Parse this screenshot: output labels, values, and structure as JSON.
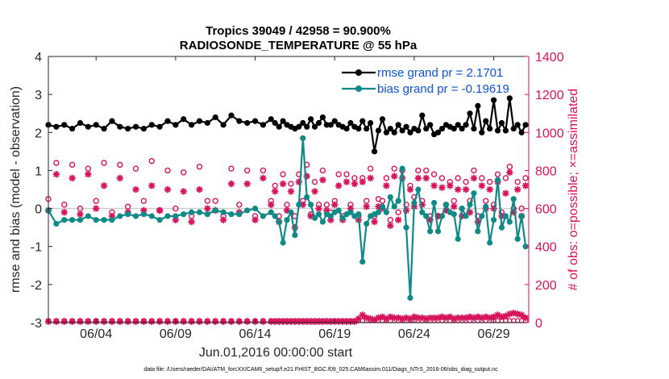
{
  "chart_data": {
    "type": "line",
    "title": "Tropics 39049 / 42958 = 90.900%",
    "subtitle": "RADIOSONDE_TEMPERATURE @ 55 hPa",
    "xlabel": "Jun.01,2016 00:00:00 start",
    "ylabel": "rmse and bias (model - observation)",
    "y2label": "# of obs: o=possible; ×=assimilated",
    "footnote": "data file: /Users/raeder/DAI/ATM_forcXX/CAM6_setup/f.e21.FHIST_BGC.f09_025.CAM6assim.011/Diags_NTrS_2016-06/obs_diag_output.nc",
    "x_tick_labels": [
      "06/04",
      "06/09",
      "06/14",
      "06/19",
      "06/24",
      "06/29"
    ],
    "x_tick_days": [
      4,
      9,
      14,
      19,
      24,
      29
    ],
    "xlim": [
      1,
      31.2
    ],
    "ylim": [
      -3,
      4
    ],
    "y_ticks": [
      "-3",
      "-2",
      "-1",
      "0",
      "1",
      "2",
      "3",
      "4"
    ],
    "y2lim": [
      0,
      1400
    ],
    "y2_ticks": [
      "0",
      "200",
      "400",
      "600",
      "800",
      "1000",
      "1200",
      "1400"
    ],
    "colors": {
      "rmse": "#000000",
      "bias": "#0f8a87",
      "obs": "#d6135b",
      "legend_text": "#0b53d8",
      "zero_line": "#cccccc"
    },
    "series": [
      {
        "name": "rmse grand pr = 2.1701",
        "x": [
          1.0,
          1.5,
          2.0,
          2.5,
          3.0,
          3.5,
          4.0,
          4.5,
          5.0,
          5.5,
          6.0,
          6.5,
          7.0,
          7.5,
          8.0,
          8.5,
          9.0,
          9.5,
          10.0,
          10.5,
          11.0,
          11.5,
          12.0,
          12.5,
          13.0,
          13.5,
          14.0,
          14.5,
          15.0,
          15.25,
          15.5,
          15.75,
          16.0,
          16.25,
          16.5,
          16.75,
          17.0,
          17.25,
          17.5,
          17.75,
          18.0,
          18.25,
          18.5,
          18.75,
          19.0,
          19.25,
          19.5,
          19.75,
          20.0,
          20.25,
          20.5,
          20.75,
          21.0,
          21.25,
          21.5,
          21.75,
          22.0,
          22.25,
          22.5,
          22.75,
          23.0,
          23.25,
          23.5,
          23.75,
          24.0,
          24.25,
          24.5,
          24.75,
          25.0,
          25.25,
          25.5,
          25.75,
          26.0,
          26.25,
          26.5,
          26.75,
          27.0,
          27.25,
          27.5,
          27.75,
          28.0,
          28.25,
          28.5,
          28.75,
          29.0,
          29.25,
          29.5,
          29.75,
          30.0,
          30.25,
          30.5,
          30.75,
          31.0
        ],
        "values": [
          2.2,
          2.15,
          2.2,
          2.1,
          2.25,
          2.15,
          2.2,
          2.1,
          2.3,
          2.15,
          2.1,
          2.15,
          2.1,
          2.2,
          2.15,
          2.3,
          2.2,
          2.35,
          2.2,
          2.3,
          2.25,
          2.4,
          2.2,
          2.45,
          2.3,
          2.25,
          2.3,
          2.2,
          2.35,
          2.25,
          2.15,
          2.3,
          2.2,
          2.15,
          2.1,
          2.15,
          2.25,
          2.15,
          2.35,
          2.15,
          2.25,
          2.4,
          2.2,
          2.2,
          2.3,
          2.2,
          2.15,
          2.1,
          2.25,
          2.15,
          2.1,
          2.3,
          2.1,
          2.25,
          1.5,
          2.05,
          2.35,
          2.0,
          2.1,
          2.0,
          2.2,
          2.05,
          2.15,
          2.0,
          2.1,
          2.05,
          2.45,
          2.1,
          2.2,
          1.95,
          2.0,
          2.1,
          2.2,
          2.15,
          2.1,
          2.2,
          2.1,
          2.2,
          2.5,
          2.1,
          2.7,
          2.0,
          2.3,
          2.1,
          2.85,
          2.05,
          2.25,
          2.05,
          2.9,
          2.1,
          2.2,
          2.0,
          2.2
        ]
      },
      {
        "name": "bias grand pr = -0.19619",
        "x": [
          1.0,
          1.5,
          2.0,
          2.5,
          3.0,
          3.5,
          4.0,
          4.5,
          5.0,
          5.5,
          6.0,
          6.5,
          7.0,
          7.5,
          8.0,
          8.5,
          9.0,
          9.5,
          10.0,
          10.5,
          11.0,
          11.5,
          12.0,
          12.5,
          13.0,
          13.5,
          14.0,
          14.5,
          15.0,
          15.25,
          15.5,
          15.75,
          16.0,
          16.25,
          16.5,
          16.75,
          17.0,
          17.25,
          17.5,
          17.75,
          18.0,
          18.25,
          18.5,
          18.75,
          19.0,
          19.25,
          19.5,
          19.75,
          20.0,
          20.25,
          20.5,
          20.75,
          21.0,
          21.25,
          21.5,
          21.75,
          22.0,
          22.25,
          22.5,
          22.75,
          23.0,
          23.25,
          23.5,
          23.75,
          24.0,
          24.25,
          24.5,
          24.75,
          25.0,
          25.25,
          25.5,
          25.75,
          26.0,
          26.25,
          26.5,
          26.75,
          27.0,
          27.25,
          27.5,
          27.75,
          28.0,
          28.25,
          28.5,
          28.75,
          29.0,
          29.25,
          29.5,
          29.75,
          30.0,
          30.25,
          30.5,
          30.75,
          31.0
        ],
        "values": [
          -0.05,
          -0.4,
          -0.3,
          -0.3,
          -0.3,
          -0.2,
          -0.3,
          -0.3,
          -0.3,
          -0.2,
          -0.15,
          -0.2,
          -0.15,
          -0.2,
          -0.3,
          -0.2,
          -0.2,
          -0.15,
          -0.1,
          -0.1,
          -0.15,
          -0.05,
          -0.1,
          -0.15,
          -0.15,
          -0.05,
          0.0,
          -0.2,
          -0.1,
          -0.2,
          -0.35,
          -0.9,
          -0.3,
          -0.1,
          -0.7,
          0.1,
          1.85,
          0.3,
          0.1,
          -0.25,
          -0.15,
          -0.35,
          -0.15,
          -0.2,
          -0.1,
          -0.05,
          -0.25,
          -0.15,
          -0.1,
          -0.2,
          -0.15,
          -1.4,
          -0.4,
          -0.2,
          -0.15,
          -0.1,
          0.05,
          -0.1,
          0.3,
          0.05,
          0.2,
          1.05,
          -0.5,
          -2.35,
          0.15,
          0.5,
          -0.1,
          -0.2,
          -0.6,
          0.15,
          -0.6,
          -0.2,
          0.1,
          -0.1,
          -0.15,
          -0.8,
          0.0,
          -0.2,
          0.1,
          0.4,
          -0.6,
          -0.2,
          0.05,
          -0.9,
          -0.3,
          0.75,
          -0.5,
          -0.2,
          -0.35,
          0.25,
          -0.8,
          -0.2,
          -1.0
        ]
      }
    ],
    "obs_possible": {
      "x": [
        1.0,
        1.5,
        2.0,
        2.5,
        3.0,
        3.5,
        4.0,
        4.5,
        5.0,
        5.5,
        6.0,
        6.5,
        7.0,
        7.5,
        8.0,
        8.5,
        9.0,
        9.5,
        10.0,
        10.5,
        11.0,
        11.5,
        12.0,
        12.5,
        13.0,
        13.5,
        14.0,
        14.5,
        15.0,
        15.25,
        15.5,
        15.75,
        16.0,
        16.25,
        16.5,
        16.75,
        17.0,
        17.25,
        17.5,
        17.75,
        18.0,
        18.25,
        18.5,
        18.75,
        19.0,
        19.25,
        19.5,
        19.75,
        20.0,
        20.25,
        20.5,
        20.75,
        21.0,
        21.25,
        21.5,
        21.75,
        22.0,
        22.25,
        22.5,
        22.75,
        23.0,
        23.25,
        23.5,
        23.75,
        24.0,
        24.25,
        24.5,
        24.75,
        25.0,
        25.25,
        25.5,
        25.75,
        26.0,
        26.25,
        26.5,
        26.75,
        27.0,
        27.25,
        27.5,
        27.75,
        28.0,
        28.25,
        28.5,
        28.75,
        29.0,
        29.25,
        29.5,
        29.75,
        30.0,
        30.25,
        30.5,
        30.75,
        31.0
      ],
      "values": [
        650,
        840,
        620,
        830,
        600,
        810,
        640,
        840,
        580,
        830,
        610,
        810,
        640,
        850,
        590,
        800,
        600,
        790,
        560,
        820,
        640,
        640,
        560,
        810,
        620,
        800,
        560,
        800,
        640,
        720,
        560,
        780,
        620,
        730,
        560,
        780,
        640,
        830,
        570,
        740,
        620,
        800,
        620,
        580,
        640,
        780,
        560,
        780,
        620,
        760,
        560,
        760,
        640,
        810,
        560,
        650,
        640,
        760,
        540,
        810,
        580,
        800,
        620,
        720,
        660,
        800,
        640,
        800,
        560,
        780,
        560,
        760,
        620,
        740,
        640,
        760,
        600,
        740,
        640,
        800,
        560,
        760,
        640,
        740,
        620,
        780,
        580,
        760,
        820,
        600,
        740,
        600,
        760
      ]
    },
    "obs_assimilated": {
      "x": [
        1.0,
        1.5,
        2.0,
        2.5,
        3.0,
        3.5,
        4.0,
        4.5,
        5.0,
        5.5,
        6.0,
        6.5,
        7.0,
        7.5,
        8.0,
        8.5,
        9.0,
        9.5,
        10.0,
        10.5,
        11.0,
        11.5,
        12.0,
        12.5,
        13.0,
        13.5,
        14.0,
        14.5,
        15.0,
        15.25,
        15.5,
        15.75,
        16.0,
        16.25,
        16.5,
        16.75,
        17.0,
        17.25,
        17.5,
        17.75,
        18.0,
        18.25,
        18.5,
        18.75,
        19.0,
        19.25,
        19.5,
        19.75,
        20.0,
        20.25,
        20.5,
        20.75,
        21.0,
        21.25,
        21.5,
        21.75,
        22.0,
        22.25,
        22.5,
        22.75,
        23.0,
        23.25,
        23.5,
        23.75,
        24.0,
        24.25,
        24.5,
        24.75,
        25.0,
        25.25,
        25.5,
        25.75,
        26.0,
        26.25,
        26.5,
        26.75,
        27.0,
        27.25,
        27.5,
        27.75,
        28.0,
        28.25,
        28.5,
        28.75,
        29.0,
        29.25,
        29.5,
        29.75,
        30.0,
        30.25,
        30.5,
        30.75,
        31.0
      ],
      "values": [
        590,
        780,
        580,
        760,
        570,
        780,
        600,
        720,
        560,
        760,
        580,
        700,
        590,
        720,
        590,
        700,
        540,
        690,
        530,
        700,
        600,
        590,
        540,
        730,
        580,
        730,
        540,
        760,
        620,
        690,
        530,
        730,
        590,
        690,
        500,
        740,
        620,
        770,
        560,
        690,
        600,
        750,
        590,
        540,
        620,
        720,
        540,
        740,
        600,
        730,
        540,
        740,
        610,
        760,
        530,
        610,
        600,
        720,
        510,
        770,
        540,
        760,
        590,
        700,
        610,
        760,
        620,
        760,
        540,
        720,
        560,
        710,
        590,
        720,
        610,
        700,
        560,
        700,
        580,
        760,
        530,
        720,
        600,
        700,
        600,
        740,
        560,
        680,
        790,
        580,
        700,
        560,
        720
      ]
    },
    "obs_bottom_possible": [
      10,
      10,
      10,
      10,
      10,
      10,
      10,
      10,
      10,
      10,
      10,
      10,
      10,
      10,
      10,
      10,
      10,
      10,
      10,
      10,
      10,
      10,
      10,
      10,
      10,
      10,
      10,
      10,
      10,
      10,
      10,
      10,
      10,
      10,
      10,
      10,
      10,
      10,
      10,
      10,
      10,
      10,
      10,
      10,
      10,
      10,
      10,
      10,
      10,
      10,
      10,
      10,
      10,
      10,
      10,
      10,
      10,
      10,
      10,
      10,
      10,
      10,
      10,
      10,
      10,
      10,
      10,
      10,
      10,
      10,
      10,
      10,
      10,
      10,
      10,
      10,
      10,
      10,
      10,
      10,
      10,
      10,
      10,
      10,
      10,
      10,
      10,
      10,
      10,
      10,
      10,
      10,
      10
    ],
    "obs_bottom_assimilated": [
      5,
      5,
      5,
      5,
      5,
      5,
      5,
      5,
      5,
      5,
      5,
      5,
      5,
      5,
      5,
      5,
      5,
      5,
      5,
      5,
      5,
      5,
      5,
      5,
      5,
      5,
      5,
      5,
      5,
      5,
      5,
      5,
      5,
      5,
      5,
      5,
      5,
      5,
      5,
      5,
      5,
      5,
      5,
      5,
      5,
      5,
      5,
      5,
      5,
      5,
      20,
      40,
      25,
      20,
      15,
      25,
      30,
      20,
      30,
      25,
      25,
      20,
      25,
      20,
      30,
      25,
      25,
      20,
      25,
      25,
      25,
      30,
      25,
      30,
      20,
      25,
      25,
      25,
      30,
      25,
      30,
      25,
      30,
      25,
      30,
      40,
      30,
      35,
      45,
      50,
      45,
      40,
      25
    ]
  }
}
